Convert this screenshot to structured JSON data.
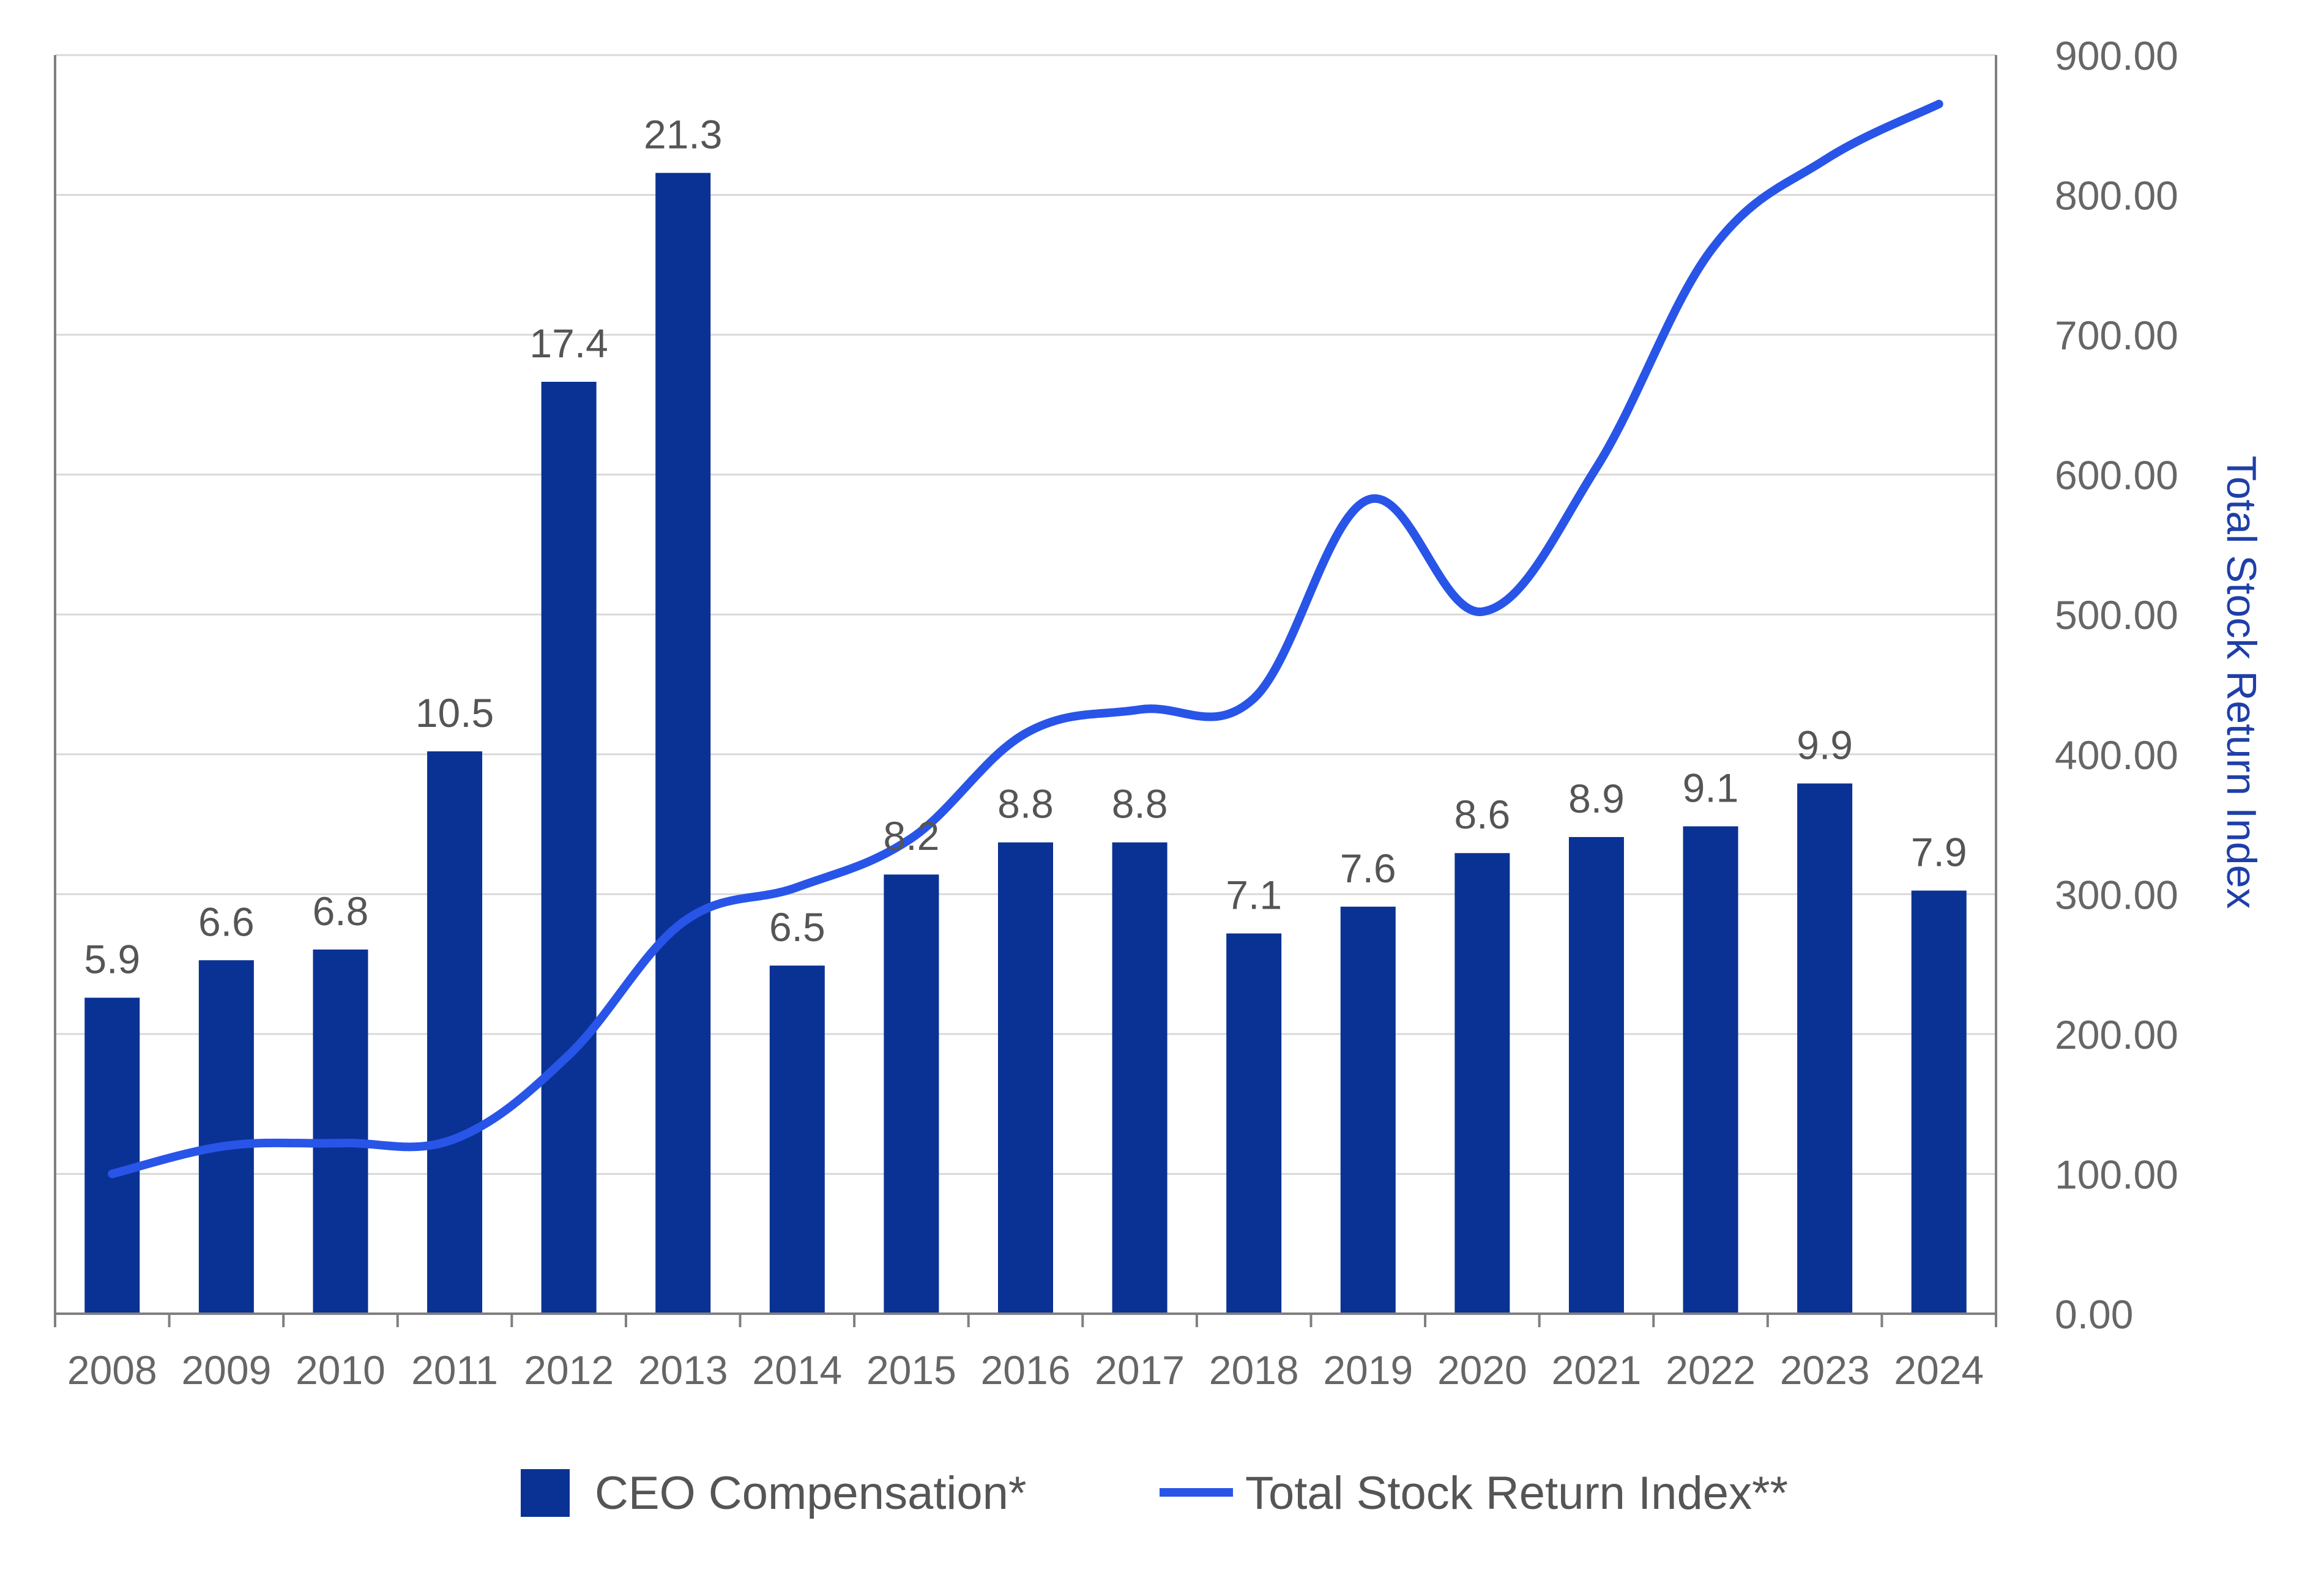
{
  "chart_data": {
    "type": "bar",
    "categories": [
      "2008",
      "2009",
      "2010",
      "2011",
      "2012",
      "2013",
      "2014",
      "2015",
      "2016",
      "2017",
      "2018",
      "2019",
      "2020",
      "2021",
      "2022",
      "2023",
      "2024"
    ],
    "series": [
      {
        "name": "CEO Compensation*",
        "kind": "bar",
        "axis": "left",
        "color": "#0a3294",
        "values": [
          5.9,
          6.6,
          6.8,
          10.5,
          17.4,
          21.3,
          6.5,
          8.2,
          8.8,
          8.8,
          7.1,
          7.6,
          8.6,
          8.9,
          9.1,
          9.9,
          7.9
        ],
        "labels": [
          "5.9",
          "6.6",
          "6.8",
          "10.5",
          "17.4",
          "21.3",
          "6.5",
          "8.2",
          "8.8",
          "8.8",
          "7.1",
          "7.6",
          "8.6",
          "8.9",
          "9.1",
          "9.9",
          "7.9"
        ]
      },
      {
        "name": "Total Stock Return Index**",
        "kind": "line",
        "axis": "right",
        "color": "#2855e8",
        "smooth": true,
        "values": [
          100,
          120,
          122,
          125,
          185,
          280,
          305,
          340,
          415,
          432,
          440,
          582,
          502,
          605,
          760,
          825,
          865
        ]
      }
    ],
    "title": "",
    "xlabel": "",
    "ylabel": "",
    "y_left_lim": [
      0,
      23.5
    ],
    "y2label": "Total Stock Return Index",
    "y2lim": [
      0,
      900
    ],
    "y2_ticks": [
      "0.00",
      "100.00",
      "200.00",
      "300.00",
      "400.00",
      "500.00",
      "600.00",
      "700.00",
      "800.00",
      "900.00"
    ],
    "y2_tick_values": [
      0,
      100,
      200,
      300,
      400,
      500,
      600,
      700,
      800,
      900
    ],
    "grid": true,
    "legend_position": "bottom-center",
    "colors": {
      "grid": "#d9d9d9",
      "axis": "#7f7f7f",
      "axis_title": "#1f3fa8"
    }
  }
}
